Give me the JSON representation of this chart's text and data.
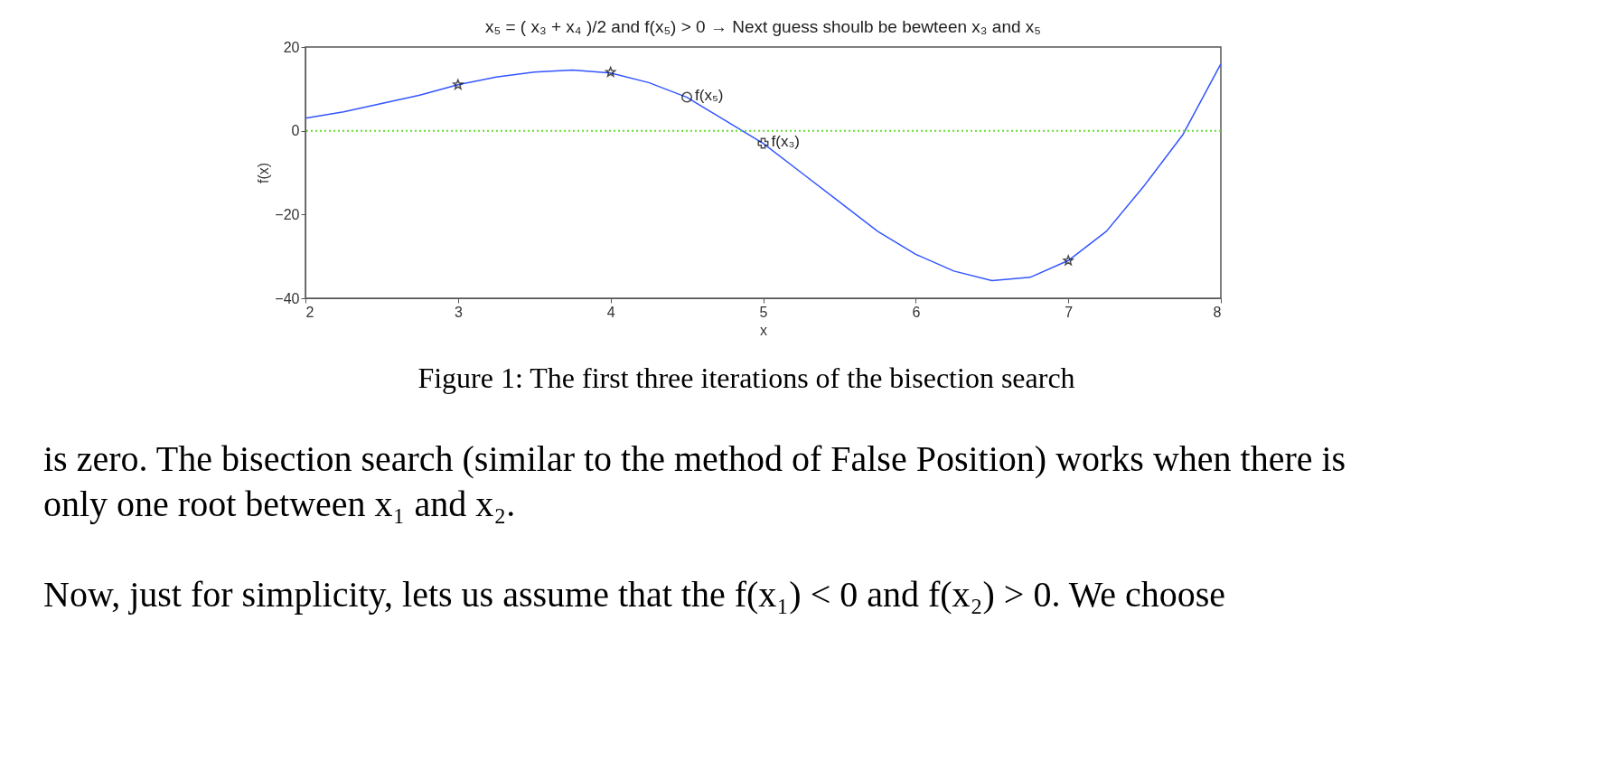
{
  "chart_data": {
    "type": "line",
    "title": "x₅ = ( x₃ + x₄ )/2 and f(x₅) > 0 → Next guess shoulb be bewteen x₃ and x₅",
    "xlabel": "x",
    "ylabel": "f(x)",
    "xlim": [
      2,
      8
    ],
    "ylim": [
      -40,
      20
    ],
    "xticks": [
      2,
      3,
      4,
      5,
      6,
      7,
      8
    ],
    "yticks": [
      -40,
      -20,
      0,
      20
    ],
    "grid": false,
    "series": [
      {
        "type": "line",
        "color": "#3355ff",
        "marker": "none",
        "line_style": "solid",
        "x": [
          2,
          2.25,
          2.5,
          2.75,
          3,
          3.25,
          3.5,
          3.75,
          4,
          4.25,
          4.5,
          4.75,
          5,
          5.25,
          5.5,
          5.75,
          6,
          6.25,
          6.5,
          6.75,
          7,
          7.25,
          7.5,
          7.75,
          8
        ],
        "values": [
          3,
          4.5,
          6.5,
          8.5,
          11,
          12.8,
          14,
          14.5,
          13.8,
          11.5,
          8,
          2.5,
          -3,
          -10,
          -17,
          -24,
          -29.5,
          -33.5,
          -35.8,
          -35,
          -31,
          -24,
          -13,
          -1,
          16
        ]
      },
      {
        "type": "scatter",
        "color": "#000000",
        "marker": "star",
        "x": [
          3,
          4,
          7
        ],
        "values": [
          11,
          14,
          -31
        ]
      },
      {
        "type": "scatter",
        "color": "#000000",
        "marker": "cross",
        "x": [
          5
        ],
        "values": [
          -3
        ]
      },
      {
        "type": "scatter",
        "color": "#000000",
        "marker": "circle",
        "x": [
          4.5
        ],
        "values": [
          8
        ]
      }
    ],
    "ref_lines": [
      {
        "axis": "y",
        "value": 0,
        "color": "#66dd33",
        "line_style": "dotted"
      }
    ],
    "annotations": [
      {
        "text": "f(x₅)",
        "x": 4.5,
        "y": 8
      },
      {
        "text": "f(x₃)",
        "x": 5,
        "y": -3
      },
      "Figure 1: The first three iterations of the bisection search",
      "is zero. The bisection search (similar to the method of False Position) works when there is",
      "only one root between x₁ and x₂.",
      "Now, just for simplicity, lets us assume that the f(x₁) < 0 and f(x₂) > 0.  We choose"
    ]
  }
}
